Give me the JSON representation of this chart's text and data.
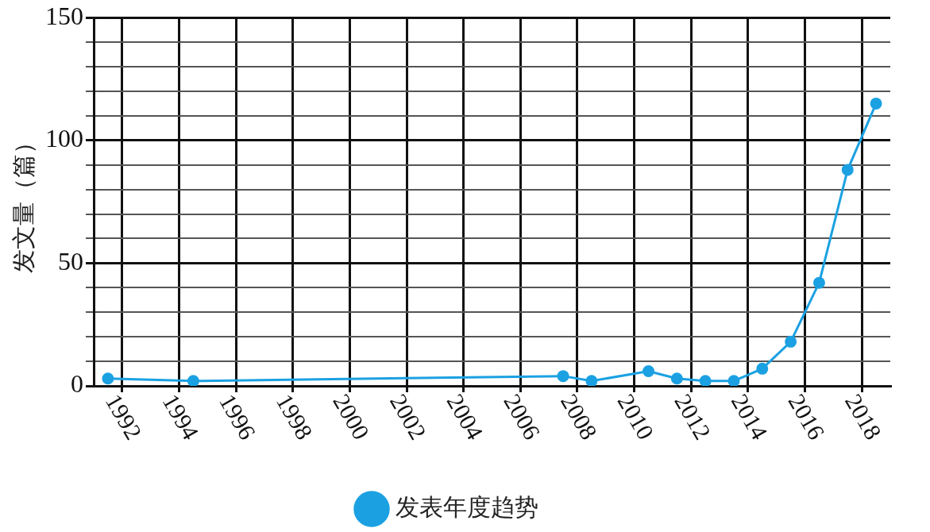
{
  "chart_data": {
    "type": "line",
    "ylabel": "发文量（篇）",
    "x": [
      1991.5,
      1994.5,
      2007.5,
      2008.5,
      2010.5,
      2011.5,
      2012.5,
      2013.5,
      2014.5,
      2015.5,
      2016.5,
      2017.5,
      2018.5
    ],
    "series": [
      {
        "name": "发表年度趋势",
        "color": "#1ba1e2",
        "values": [
          3,
          2,
          4,
          2,
          6,
          3,
          2,
          2,
          7,
          18,
          42,
          88,
          115
        ]
      }
    ],
    "xlim": [
      1991,
      2019
    ],
    "xticks": [
      1992,
      1994,
      1996,
      1998,
      2000,
      2002,
      2004,
      2006,
      2008,
      2010,
      2012,
      2014,
      2016,
      2018
    ],
    "ylim": [
      0,
      150
    ],
    "yticks": [
      0,
      {
        "value": 10,
        "label": null
      },
      {
        "value": 20,
        "label": null
      },
      {
        "value": 30,
        "label": null
      },
      {
        "value": 40,
        "label": null
      },
      50,
      {
        "value": 60,
        "label": null
      },
      {
        "value": 70,
        "label": null
      },
      {
        "value": 80,
        "label": null
      },
      {
        "value": 90,
        "label": null
      },
      100,
      {
        "value": 110,
        "label": null
      },
      {
        "value": 120,
        "label": null
      },
      {
        "value": 130,
        "label": null
      },
      {
        "value": 140,
        "label": null
      },
      150
    ],
    "grid": true,
    "legend": "bottom",
    "marker": "circle",
    "line_style": "solid"
  }
}
